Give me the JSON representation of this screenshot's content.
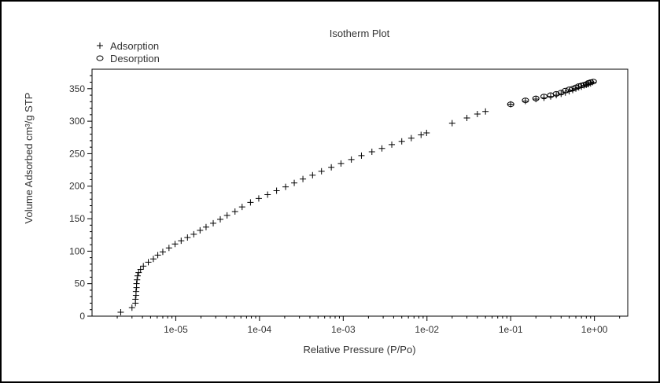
{
  "chart_data": {
    "type": "scatter",
    "title": "Isotherm Plot",
    "xlabel": "Relative Pressure (P/Po)",
    "ylabel": "Volume Adsorbed cm³/g STP",
    "xscale": "log",
    "xlim": [
      1e-06,
      2.5
    ],
    "ylim": [
      0,
      380
    ],
    "xticks": [
      1e-05,
      0.0001,
      0.001,
      0.01,
      0.1,
      1
    ],
    "xtick_labels": [
      "1e-05",
      "1e-04",
      "1e-03",
      "1e-02",
      "1e-01",
      "1e+00"
    ],
    "yticks": [
      0,
      50,
      100,
      150,
      200,
      250,
      300,
      350
    ],
    "ytick_labels": [
      "0",
      "50",
      "100",
      "150",
      "200",
      "250",
      "300",
      "350"
    ],
    "grid": false,
    "legend_position": "top-left",
    "series": [
      {
        "name": "Adsorption",
        "marker": "plus",
        "x": [
          2.2e-06,
          3e-06,
          3.3e-06,
          3.3e-06,
          3.35e-06,
          3.35e-06,
          3.4e-06,
          3.4e-06,
          3.45e-06,
          3.5e-06,
          3.6e-06,
          3.8e-06,
          4.1e-06,
          4.7e-06,
          5.4e-06,
          6.1e-06,
          7e-06,
          8.3e-06,
          9.8e-06,
          1.16e-05,
          1.38e-05,
          1.64e-05,
          1.95e-05,
          2.3e-05,
          2.8e-05,
          3.4e-05,
          4.1e-05,
          5.1e-05,
          6.2e-05,
          7.8e-05,
          9.8e-05,
          0.000125,
          0.00016,
          0.000205,
          0.00026,
          0.00033,
          0.00043,
          0.00055,
          0.00072,
          0.00094,
          0.00125,
          0.00165,
          0.0022,
          0.0029,
          0.0038,
          0.005,
          0.0065,
          0.0085,
          0.0099,
          0.02,
          0.03,
          0.04,
          0.05,
          0.1,
          0.15,
          0.2,
          0.25,
          0.3,
          0.35,
          0.4,
          0.45,
          0.5,
          0.55,
          0.6,
          0.65,
          0.7,
          0.75,
          0.8,
          0.85,
          0.9,
          0.95
        ],
        "y": [
          6,
          13,
          20,
          26,
          32,
          38,
          44,
          50,
          56,
          62,
          67,
          72,
          77,
          83,
          88,
          94,
          99,
          105,
          111,
          116,
          121,
          126,
          132,
          137,
          143,
          149,
          155,
          161,
          168,
          175,
          181,
          187,
          193,
          199,
          205,
          211,
          217,
          223,
          229,
          235,
          241,
          247,
          253,
          258,
          264,
          269,
          274,
          279,
          282,
          297,
          305,
          311,
          315,
          326,
          331,
          334,
          336,
          338,
          340,
          342,
          344,
          346,
          348,
          350,
          352,
          353,
          355,
          356,
          357,
          358,
          360
        ]
      },
      {
        "name": "Desorption",
        "marker": "circle",
        "x": [
          0.97,
          0.9,
          0.85,
          0.8,
          0.75,
          0.7,
          0.65,
          0.6,
          0.55,
          0.5,
          0.45,
          0.4,
          0.35,
          0.3,
          0.25,
          0.2,
          0.15,
          0.1
        ],
        "y": [
          361,
          360,
          359,
          357,
          356,
          355,
          354,
          352,
          350,
          349,
          347,
          344,
          342,
          340,
          338,
          335,
          332,
          326
        ]
      }
    ]
  }
}
